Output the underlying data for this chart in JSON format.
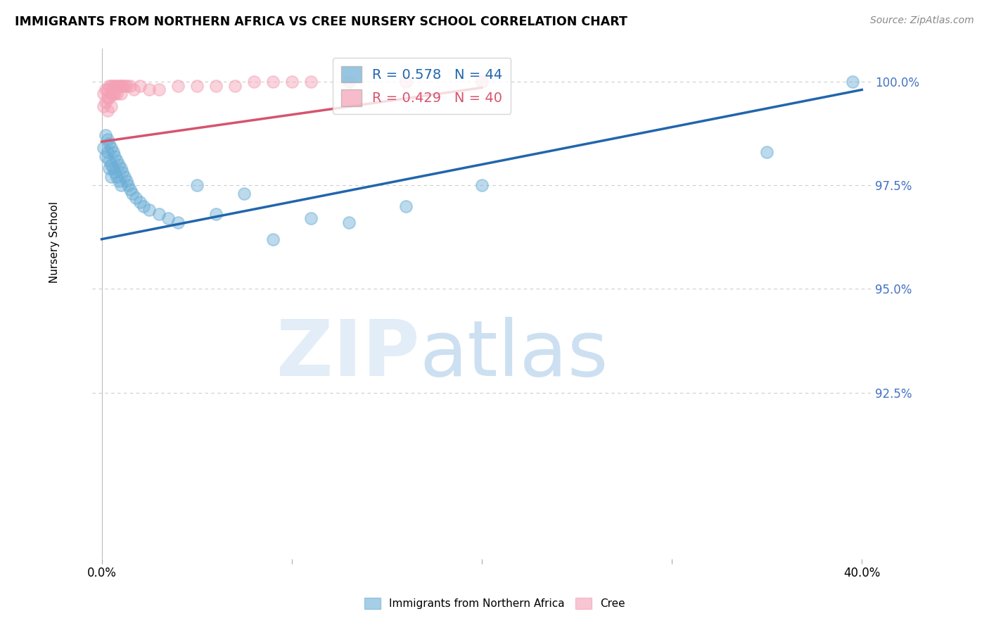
{
  "title": "IMMIGRANTS FROM NORTHERN AFRICA VS CREE NURSERY SCHOOL CORRELATION CHART",
  "source": "Source: ZipAtlas.com",
  "ylabel": "Nursery School",
  "ylabel_ticks": [
    "100.0%",
    "97.5%",
    "95.0%",
    "92.5%"
  ],
  "ylabel_tick_vals": [
    1.0,
    0.975,
    0.95,
    0.925
  ],
  "xlim": [
    0.0,
    0.4
  ],
  "ylim": [
    0.885,
    1.008
  ],
  "legend_blue_R": "0.578",
  "legend_blue_N": "44",
  "legend_pink_R": "0.429",
  "legend_pink_N": "40",
  "blue_color": "#6baed6",
  "pink_color": "#f4a0b5",
  "blue_line_color": "#2166ac",
  "pink_line_color": "#d6546e",
  "background_color": "#ffffff",
  "grid_color": "#cccccc",
  "blue_scatter_x": [
    0.001,
    0.002,
    0.002,
    0.003,
    0.003,
    0.004,
    0.004,
    0.004,
    0.005,
    0.005,
    0.005,
    0.006,
    0.006,
    0.007,
    0.007,
    0.008,
    0.008,
    0.009,
    0.009,
    0.01,
    0.01,
    0.011,
    0.012,
    0.013,
    0.014,
    0.015,
    0.016,
    0.018,
    0.02,
    0.022,
    0.025,
    0.03,
    0.035,
    0.04,
    0.05,
    0.06,
    0.075,
    0.09,
    0.11,
    0.13,
    0.16,
    0.2,
    0.35,
    0.395
  ],
  "blue_scatter_y": [
    0.984,
    0.987,
    0.982,
    0.986,
    0.983,
    0.985,
    0.981,
    0.979,
    0.984,
    0.98,
    0.977,
    0.983,
    0.979,
    0.982,
    0.978,
    0.981,
    0.977,
    0.98,
    0.976,
    0.979,
    0.975,
    0.978,
    0.977,
    0.976,
    0.975,
    0.974,
    0.973,
    0.972,
    0.971,
    0.97,
    0.969,
    0.968,
    0.967,
    0.966,
    0.975,
    0.968,
    0.973,
    0.962,
    0.967,
    0.966,
    0.97,
    0.975,
    0.983,
    1.0
  ],
  "pink_scatter_x": [
    0.001,
    0.001,
    0.002,
    0.002,
    0.003,
    0.003,
    0.003,
    0.004,
    0.004,
    0.005,
    0.005,
    0.005,
    0.006,
    0.006,
    0.007,
    0.007,
    0.008,
    0.008,
    0.009,
    0.01,
    0.01,
    0.011,
    0.012,
    0.013,
    0.015,
    0.017,
    0.02,
    0.025,
    0.03,
    0.04,
    0.05,
    0.06,
    0.07,
    0.08,
    0.09,
    0.1,
    0.11,
    0.13,
    0.16,
    0.2
  ],
  "pink_scatter_y": [
    0.997,
    0.994,
    0.998,
    0.995,
    0.998,
    0.996,
    0.993,
    0.999,
    0.996,
    0.999,
    0.997,
    0.994,
    0.999,
    0.997,
    0.999,
    0.997,
    0.999,
    0.997,
    0.999,
    0.999,
    0.997,
    0.999,
    0.999,
    0.999,
    0.999,
    0.998,
    0.999,
    0.998,
    0.998,
    0.999,
    0.999,
    0.999,
    0.999,
    1.0,
    1.0,
    1.0,
    1.0,
    1.0,
    1.0,
    1.0
  ],
  "blue_line_x": [
    0.0,
    0.4
  ],
  "blue_line_y": [
    0.962,
    0.998
  ],
  "pink_line_x": [
    0.0,
    0.2
  ],
  "pink_line_y": [
    0.9855,
    0.9985
  ]
}
